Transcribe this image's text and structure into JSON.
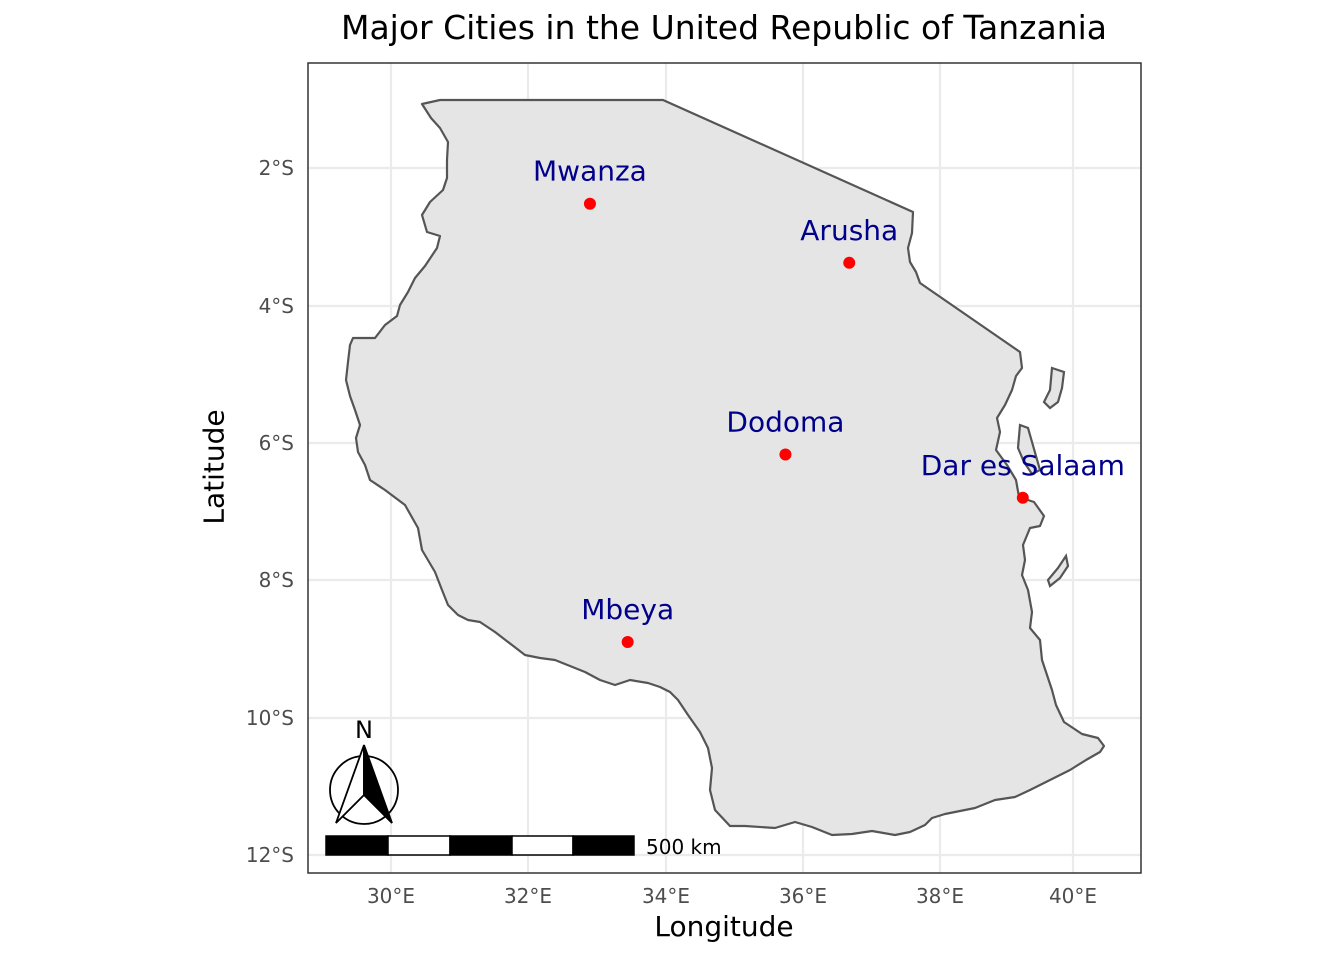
{
  "map": {
    "title": "Major Cities in the United Republic of Tanzania",
    "x_axis_label": "Longitude",
    "y_axis_label": "Latitude",
    "x_ticks": [
      "30°E",
      "32°E",
      "34°E",
      "36°E",
      "38°E",
      "40°E"
    ],
    "y_ticks": [
      "2°S",
      "4°S",
      "6°S",
      "8°S",
      "10°S",
      "12°S"
    ],
    "country_fill": "#e5e5e5",
    "border_color": "#555555",
    "point_color": "#ff0000",
    "label_color": "#00008b",
    "grid": true,
    "cities": [
      {
        "name": "Mwanza",
        "lon": 32.9,
        "lat": -2.52
      },
      {
        "name": "Arusha",
        "lon": 36.68,
        "lat": -3.38
      },
      {
        "name": "Dodoma",
        "lon": 35.75,
        "lat": -6.17
      },
      {
        "name": "Dar es Salaam",
        "lon": 39.21,
        "lat": -6.8
      },
      {
        "name": "Mbeya",
        "lon": 33.45,
        "lat": -8.9
      }
    ],
    "scale_bar": {
      "label": "500 km",
      "segments": 5
    },
    "north_arrow": {
      "label": "N"
    }
  }
}
